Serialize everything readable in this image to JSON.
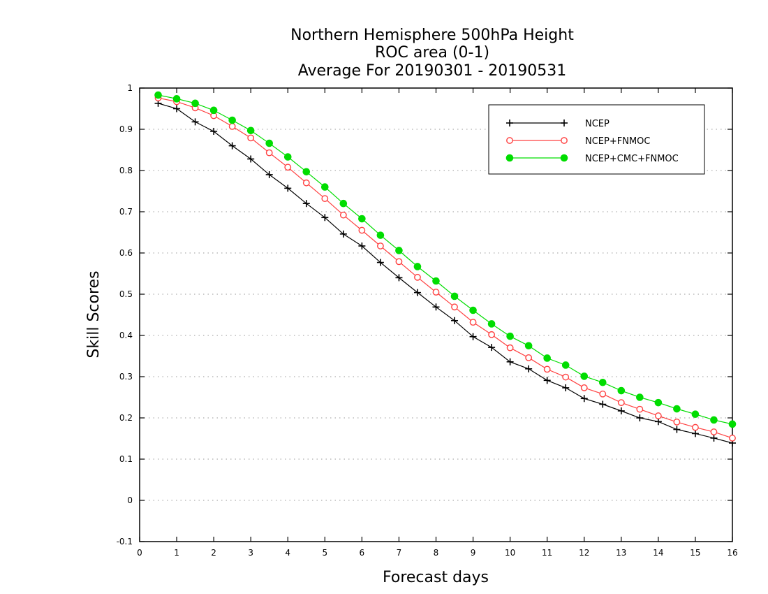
{
  "chart_data": {
    "type": "line",
    "title_lines": [
      "Northern Hemisphere 500hPa Height",
      "ROC area (0-1)",
      "Average For 20190301 - 20190531"
    ],
    "xlabel": "Forecast days",
    "ylabel": "Skill Scores",
    "xlim": [
      0,
      16
    ],
    "ylim": [
      -0.1,
      1
    ],
    "xticks": [
      0,
      1,
      2,
      3,
      4,
      5,
      6,
      7,
      8,
      9,
      10,
      11,
      12,
      13,
      14,
      15,
      16
    ],
    "yticks": [
      -0.1,
      0,
      0.1,
      0.2,
      0.3,
      0.4,
      0.5,
      0.6,
      0.7,
      0.8,
      0.9,
      1
    ],
    "ytick_labels": [
      "-0.1",
      "0",
      "0.1",
      "0.2",
      "0.3",
      "0.4",
      "0.5",
      "0.6",
      "0.7",
      "0.8",
      "0.9",
      "1"
    ],
    "grid": "horizontal dotted",
    "legend_position": "top-right",
    "x": [
      0.5,
      1,
      1.5,
      2,
      2.5,
      3,
      3.5,
      4,
      4.5,
      5,
      5.5,
      6,
      6.5,
      7,
      7.5,
      8,
      8.5,
      9,
      9.5,
      10,
      10.5,
      11,
      11.5,
      12,
      12.5,
      13,
      13.5,
      14,
      14.5,
      15,
      15.5,
      16
    ],
    "series": [
      {
        "name": "NCEP",
        "color": "#000000",
        "marker": "plus",
        "values": [
          0.963,
          0.95,
          0.918,
          0.895,
          0.86,
          0.828,
          0.79,
          0.757,
          0.72,
          0.686,
          0.646,
          0.617,
          0.577,
          0.54,
          0.504,
          0.469,
          0.436,
          0.397,
          0.371,
          0.336,
          0.319,
          0.291,
          0.273,
          0.247,
          0.233,
          0.217,
          0.2,
          0.191,
          0.172,
          0.162,
          0.151,
          0.139
        ]
      },
      {
        "name": "NCEP+FNMOC",
        "color": "#ff4040",
        "marker": "open-circle",
        "values": [
          0.976,
          0.967,
          0.952,
          0.933,
          0.907,
          0.879,
          0.843,
          0.808,
          0.77,
          0.732,
          0.692,
          0.655,
          0.617,
          0.579,
          0.541,
          0.505,
          0.469,
          0.432,
          0.402,
          0.37,
          0.346,
          0.318,
          0.299,
          0.273,
          0.258,
          0.237,
          0.221,
          0.205,
          0.19,
          0.177,
          0.166,
          0.151
        ]
      },
      {
        "name": "NCEP+CMC+FNMOC",
        "color": "#00dd00",
        "marker": "filled-circle",
        "values": [
          0.983,
          0.974,
          0.963,
          0.946,
          0.922,
          0.897,
          0.866,
          0.833,
          0.797,
          0.76,
          0.72,
          0.683,
          0.643,
          0.606,
          0.567,
          0.532,
          0.495,
          0.461,
          0.428,
          0.398,
          0.375,
          0.345,
          0.328,
          0.301,
          0.286,
          0.266,
          0.25,
          0.237,
          0.222,
          0.209,
          0.195,
          0.185
        ]
      }
    ]
  }
}
